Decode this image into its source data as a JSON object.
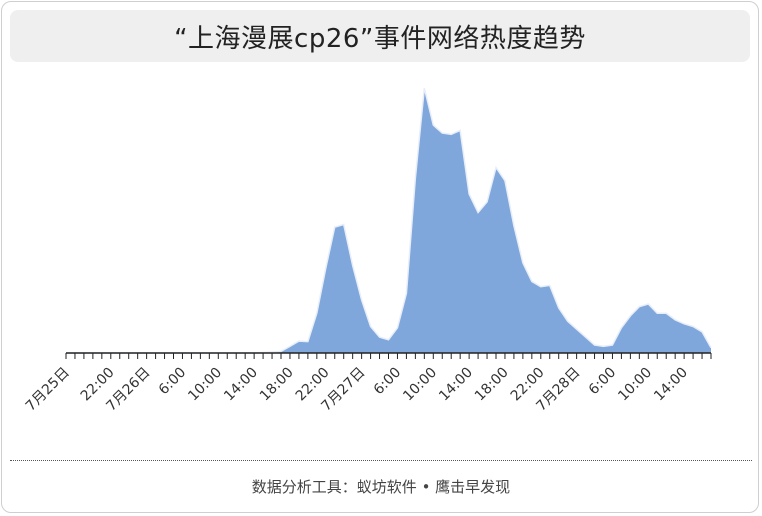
{
  "header": {
    "title": "“上海漫展cp26”事件网络热度趋势"
  },
  "footer": {
    "source": "数据分析工具：蚁坊软件 • 鹰击早发现"
  },
  "chart_data": {
    "type": "area",
    "title": "“上海漫展cp26”事件网络热度趋势",
    "xlabel": "",
    "ylabel": "",
    "grid": false,
    "legend": "none",
    "colors": {
      "fill": "#7fa7dc",
      "line": "#e8eef8",
      "axis": "#222222"
    },
    "x_tick_labels": [
      "7月25日",
      "22:00",
      "7月26日",
      "6:00",
      "10:00",
      "14:00",
      "18:00",
      "22:00",
      "7月27日",
      "6:00",
      "10:00",
      "14:00",
      "18:00",
      "22:00",
      "7月28日",
      "6:00",
      "10:00",
      "14:00"
    ],
    "x_label_positions": [
      0,
      5,
      9,
      13,
      17,
      21,
      25,
      29,
      33,
      37,
      41,
      45,
      49,
      53,
      57,
      61,
      65,
      69
    ],
    "ylim": [
      0,
      100
    ],
    "values": [
      0,
      0,
      0,
      0,
      0,
      0,
      0,
      0,
      0,
      0,
      0,
      0,
      0,
      0,
      0,
      0,
      0,
      0,
      0,
      0,
      0,
      0,
      0.2,
      0.4,
      0.6,
      2.5,
      4.5,
      4.3,
      15,
      32,
      47.5,
      48.5,
      33,
      20,
      10,
      6,
      5,
      9.5,
      22.5,
      66,
      100,
      86,
      83,
      82.5,
      84,
      60,
      53,
      57,
      70,
      65,
      48,
      34,
      27,
      25,
      25.5,
      17,
      12,
      9,
      6,
      3,
      2.5,
      3,
      9.5,
      14,
      17.5,
      18.5,
      15,
      15,
      12.5,
      11,
      10,
      8,
      2
    ]
  }
}
